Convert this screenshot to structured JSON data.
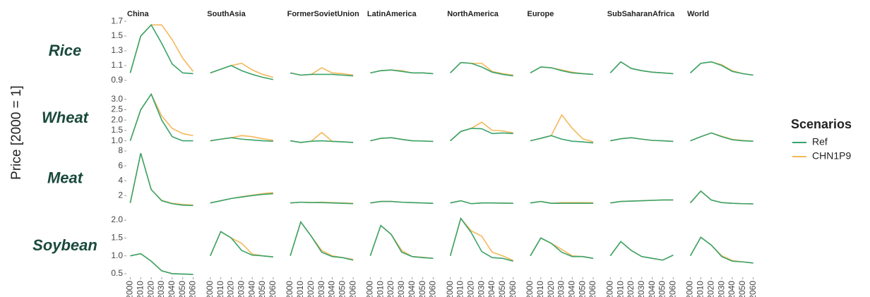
{
  "chart_data": {
    "type": "line",
    "y_label": "Price [2000 = 1]",
    "legend_title": "Scenarios",
    "columns": [
      "China",
      "SouthAsia",
      "FormerSovietUnion",
      "LatinAmerica",
      "NorthAmerica",
      "Europe",
      "SubSaharanAfrica",
      "World"
    ],
    "x": [
      2000,
      2010,
      2020,
      2030,
      2040,
      2050,
      2060
    ],
    "xlim": [
      1997,
      2063
    ],
    "xticks": [
      2000,
      2010,
      2020,
      2030,
      2040,
      2050,
      2060
    ],
    "rows": [
      {
        "name": "Rice",
        "ylim": [
          0.86,
          1.72
        ],
        "yticks": [
          0.9,
          1.1,
          1.3,
          1.5,
          1.7
        ]
      },
      {
        "name": "Wheat",
        "ylim": [
          0.85,
          3.3
        ],
        "yticks": [
          {
            "value": 1,
            "label": "1.0"
          },
          1.5,
          {
            "value": 2,
            "label": "2.0"
          },
          2.5,
          {
            "value": 3,
            "label": "3.0"
          }
        ]
      },
      {
        "name": "Meat",
        "ylim": [
          0.4,
          8.1
        ],
        "yticks": [
          2,
          4,
          6,
          8
        ]
      },
      {
        "name": "Soybean",
        "ylim": [
          0.42,
          2.12
        ],
        "yticks": [
          0.5,
          {
            "value": 1,
            "label": "1.0"
          },
          1.5,
          {
            "value": 2,
            "label": "2.0"
          }
        ]
      }
    ],
    "series": [
      {
        "name": "Ref",
        "color": "#3aa36a",
        "values": [
          [
            [
              1.0,
              1.5,
              1.65,
              1.4,
              1.12,
              1.0,
              0.99
            ],
            [
              1.0,
              1.05,
              1.1,
              1.03,
              0.98,
              0.94,
              0.91
            ],
            [
              1.0,
              0.97,
              0.98,
              0.98,
              0.98,
              0.97,
              0.96
            ],
            [
              1.0,
              1.03,
              1.04,
              1.02,
              1.0,
              1.0,
              0.99
            ],
            [
              1.0,
              1.14,
              1.13,
              1.08,
              1.01,
              0.98,
              0.96
            ],
            [
              1.0,
              1.08,
              1.07,
              1.03,
              1.0,
              0.99,
              0.98
            ],
            [
              1.0,
              1.15,
              1.06,
              1.03,
              1.01,
              1.0,
              0.99
            ],
            [
              1.0,
              1.13,
              1.15,
              1.1,
              1.02,
              0.99,
              0.97
            ]
          ],
          [
            [
              1.0,
              2.5,
              3.25,
              2.0,
              1.2,
              1.0,
              1.0
            ],
            [
              1.0,
              1.08,
              1.15,
              1.08,
              1.04,
              1.0,
              0.98
            ],
            [
              1.0,
              0.92,
              0.98,
              1.0,
              0.97,
              0.95,
              0.92
            ],
            [
              1.0,
              1.12,
              1.15,
              1.07,
              1.0,
              0.99,
              0.97
            ],
            [
              1.0,
              1.45,
              1.6,
              1.58,
              1.35,
              1.38,
              1.35
            ],
            [
              1.0,
              1.12,
              1.25,
              1.08,
              0.98,
              0.95,
              0.9
            ],
            [
              1.0,
              1.1,
              1.15,
              1.08,
              1.02,
              1.0,
              0.97
            ],
            [
              1.0,
              1.2,
              1.38,
              1.2,
              1.05,
              1.0,
              0.98
            ]
          ],
          [
            [
              1.0,
              7.7,
              2.8,
              1.3,
              0.9,
              0.7,
              0.65
            ],
            [
              1.0,
              1.3,
              1.6,
              1.8,
              2.0,
              2.15,
              2.25
            ],
            [
              1.0,
              1.1,
              1.05,
              1.05,
              1.0,
              0.95,
              0.9
            ],
            [
              1.0,
              1.2,
              1.2,
              1.1,
              1.05,
              1.0,
              0.95
            ],
            [
              1.0,
              1.3,
              0.9,
              1.0,
              1.0,
              0.98,
              0.95
            ],
            [
              1.0,
              1.2,
              0.95,
              0.95,
              0.95,
              0.95,
              0.95
            ],
            [
              1.0,
              1.2,
              1.25,
              1.3,
              1.35,
              1.4,
              1.4
            ],
            [
              1.0,
              2.6,
              1.4,
              1.05,
              0.95,
              0.9,
              0.88
            ]
          ],
          [
            [
              1.0,
              1.06,
              0.85,
              0.58,
              0.5,
              0.49,
              0.48
            ],
            [
              1.0,
              1.68,
              1.5,
              1.15,
              1.02,
              1.0,
              0.97
            ],
            [
              1.0,
              1.95,
              1.55,
              1.1,
              0.98,
              0.95,
              0.88
            ],
            [
              1.0,
              1.85,
              1.6,
              1.1,
              0.98,
              0.95,
              0.93
            ],
            [
              1.0,
              2.05,
              1.65,
              1.12,
              0.95,
              0.93,
              0.85
            ],
            [
              1.0,
              1.5,
              1.35,
              1.1,
              0.98,
              0.98,
              0.93
            ],
            [
              1.0,
              1.4,
              1.15,
              0.98,
              0.93,
              0.88,
              1.02
            ],
            [
              1.0,
              1.52,
              1.3,
              0.98,
              0.85,
              0.83,
              0.8
            ]
          ]
        ]
      },
      {
        "name": "CHN1P9",
        "color": "#f5b85a",
        "values": [
          [
            [
              1.0,
              1.5,
              1.65,
              1.65,
              1.45,
              1.2,
              1.02
            ],
            [
              1.0,
              1.05,
              1.1,
              1.13,
              1.04,
              0.98,
              0.94
            ],
            [
              1.0,
              0.97,
              0.98,
              1.07,
              1.0,
              0.99,
              0.97
            ],
            [
              1.0,
              1.03,
              1.04,
              1.03,
              1.0,
              1.0,
              0.99
            ],
            [
              1.0,
              1.14,
              1.13,
              1.13,
              1.02,
              0.99,
              0.97
            ],
            [
              1.0,
              1.08,
              1.07,
              1.04,
              1.01,
              0.99,
              0.98
            ],
            [
              1.0,
              1.15,
              1.06,
              1.03,
              1.01,
              1.0,
              0.99
            ],
            [
              1.0,
              1.13,
              1.15,
              1.11,
              1.03,
              0.99,
              0.97
            ]
          ],
          [
            [
              1.0,
              2.5,
              3.25,
              2.2,
              1.6,
              1.35,
              1.25
            ],
            [
              1.0,
              1.08,
              1.15,
              1.25,
              1.2,
              1.1,
              1.03
            ],
            [
              1.0,
              0.92,
              0.98,
              1.4,
              0.98,
              0.95,
              0.92
            ],
            [
              1.0,
              1.12,
              1.15,
              1.07,
              1.0,
              0.99,
              0.97
            ],
            [
              1.0,
              1.45,
              1.6,
              1.9,
              1.5,
              1.48,
              1.38
            ],
            [
              1.0,
              1.12,
              1.25,
              2.25,
              1.6,
              1.1,
              0.95
            ],
            [
              1.0,
              1.1,
              1.15,
              1.08,
              1.02,
              1.0,
              0.97
            ],
            [
              1.0,
              1.2,
              1.38,
              1.22,
              1.07,
              1.02,
              0.98
            ]
          ],
          [
            [
              1.0,
              7.7,
              2.8,
              1.35,
              0.95,
              0.8,
              0.7
            ],
            [
              1.0,
              1.3,
              1.6,
              1.85,
              2.05,
              2.25,
              2.4
            ],
            [
              1.0,
              1.1,
              1.05,
              1.1,
              1.05,
              1.0,
              0.95
            ],
            [
              1.0,
              1.2,
              1.2,
              1.1,
              1.05,
              1.0,
              0.95
            ],
            [
              1.0,
              1.3,
              0.9,
              1.0,
              1.0,
              0.98,
              0.95
            ],
            [
              1.0,
              1.2,
              0.95,
              1.05,
              1.05,
              1.05,
              1.02
            ],
            [
              1.0,
              1.2,
              1.25,
              1.3,
              1.35,
              1.4,
              1.4
            ],
            [
              1.0,
              2.6,
              1.4,
              1.05,
              0.95,
              0.9,
              0.88
            ]
          ],
          [
            [
              1.0,
              1.06,
              0.85,
              0.58,
              0.5,
              0.49,
              0.48
            ],
            [
              1.0,
              1.68,
              1.5,
              1.35,
              1.05,
              1.0,
              0.97
            ],
            [
              1.0,
              1.95,
              1.55,
              1.15,
              1.0,
              0.95,
              0.9
            ],
            [
              1.0,
              1.85,
              1.6,
              1.15,
              0.98,
              0.96,
              0.93
            ],
            [
              1.0,
              2.05,
              1.7,
              1.55,
              1.1,
              1.0,
              0.87
            ],
            [
              1.0,
              1.5,
              1.35,
              1.18,
              1.0,
              0.98,
              0.93
            ],
            [
              1.0,
              1.4,
              1.15,
              0.98,
              0.93,
              0.88,
              1.02
            ],
            [
              1.0,
              1.52,
              1.3,
              1.0,
              0.87,
              0.83,
              0.8
            ]
          ]
        ]
      }
    ]
  }
}
